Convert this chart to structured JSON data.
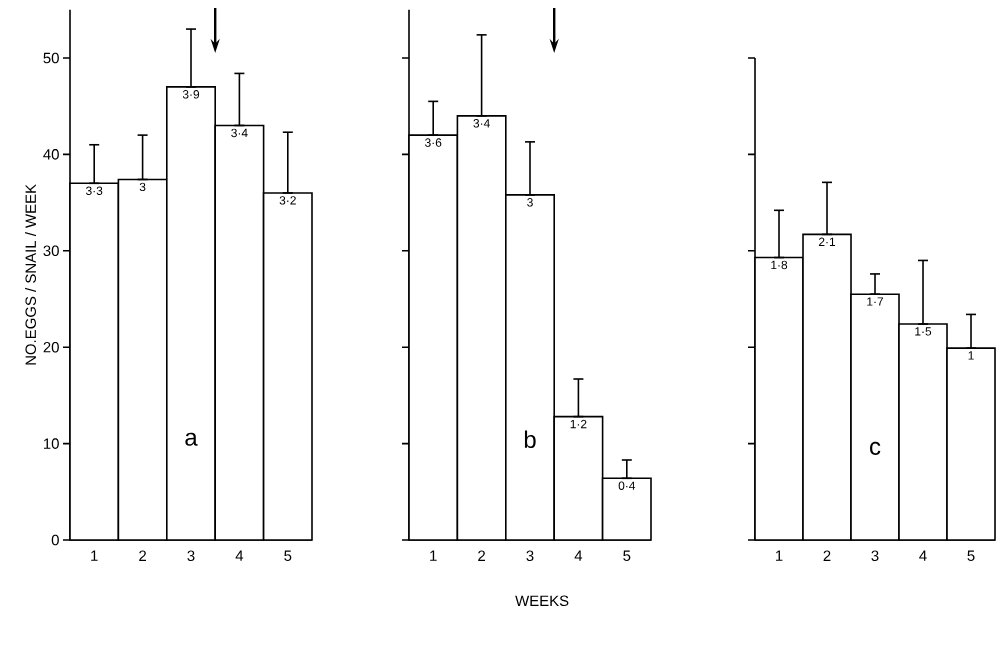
{
  "chart_data": [
    {
      "type": "bar",
      "ylabel": "NO.EGGS / SNAIL / WEEK",
      "categories": [
        "1",
        "2",
        "3",
        "4",
        "5"
      ],
      "color": "#ffffff",
      "values": [
        37,
        37.4,
        47,
        43,
        36
      ],
      "errors": [
        [
          37,
          41
        ],
        [
          37.4,
          42
        ],
        [
          47,
          53
        ],
        [
          43,
          48.4
        ],
        [
          36,
          42.3
        ]
      ],
      "annotations": [
        "a",
        {
          "text": "3·3",
          "x": "1",
          "y": 37
        },
        {
          "text": "3",
          "x": "2",
          "y": 37.4
        },
        {
          "text": "3·9",
          "x": "3",
          "y": 47
        },
        {
          "text": "3·4",
          "x": "4",
          "y": 43
        },
        {
          "text": "3·2",
          "x": "5",
          "y": 36
        }
      ],
      "ylim": [
        0,
        55
      ],
      "yticks": [
        0,
        10,
        20,
        30,
        40,
        50
      ]
    },
    {
      "type": "bar",
      "xlabel": "WEEKS",
      "categories": [
        "1",
        "2",
        "3",
        "4",
        "5"
      ],
      "color": "#ffffff",
      "values": [
        42,
        44,
        35.8,
        12.8,
        6.4
      ],
      "errors": [
        [
          42,
          45.5
        ],
        [
          44,
          52.4
        ],
        [
          35.8,
          41.3
        ],
        [
          12.8,
          16.7
        ],
        [
          6.4,
          8.3
        ]
      ],
      "annotations": [
        "b",
        {
          "text": "3·6",
          "x": "1",
          "y": 42
        },
        {
          "text": "3·4",
          "x": "2",
          "y": 44
        },
        {
          "text": "3",
          "x": "3",
          "y": 35.8
        },
        {
          "text": "1·2",
          "x": "4",
          "y": 12.8
        },
        {
          "text": "0·4",
          "x": "5",
          "y": 6.4
        }
      ],
      "ylim": [
        0,
        55
      ],
      "yticks": [
        0,
        10,
        20,
        30,
        40,
        50
      ],
      "tick_labels": "x"
    },
    {
      "type": "bar",
      "categories": [
        "1",
        "2",
        "3",
        "4",
        "5"
      ],
      "color": "#ffffff",
      "values": [
        29.3,
        31.7,
        25.5,
        22.4,
        19.9
      ],
      "errors": [
        [
          29.3,
          34.2
        ],
        [
          31.7,
          37.1
        ],
        [
          25.5,
          27.6
        ],
        [
          22.4,
          29
        ],
        [
          19.9,
          23.4
        ]
      ],
      "annotations": [
        "c",
        {
          "text": "1·8",
          "x": "1",
          "y": 29.3
        },
        {
          "text": "2·1",
          "x": "2",
          "y": 31.7
        },
        {
          "text": "1·7",
          "x": "3",
          "y": 25.5
        },
        {
          "text": "1·5",
          "x": "4",
          "y": 22.4
        },
        {
          "text": "1",
          "x": "5",
          "y": 19.9
        }
      ],
      "ylim": [
        0,
        50
      ],
      "yticks": [
        0,
        10,
        20,
        30,
        40,
        50
      ],
      "tick_labels": "x"
    }
  ]
}
